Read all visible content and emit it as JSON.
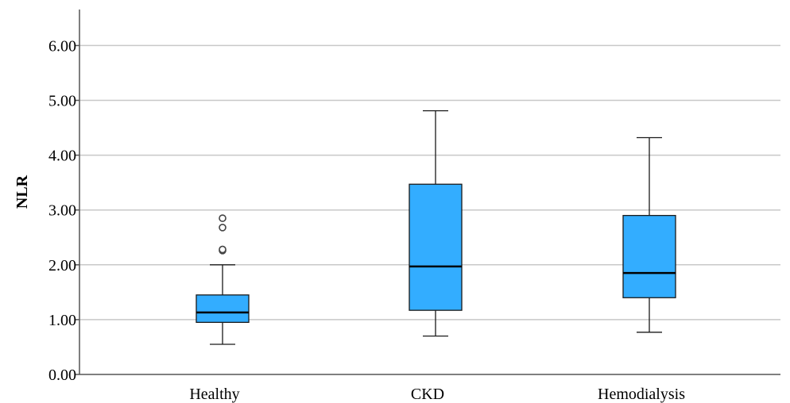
{
  "chart_data": {
    "type": "box",
    "ylabel": "NLR",
    "xlabel": "",
    "ylim": [
      0,
      6.6
    ],
    "yticks": [
      0,
      1,
      2,
      3,
      4,
      5,
      6
    ],
    "ytick_labels": [
      "0.00",
      "1.00",
      "2.00",
      "3.00",
      "4.00",
      "5.00",
      "6.00"
    ],
    "grid": true,
    "categories": [
      "Healthy",
      "CKD",
      "Hemodialysis"
    ],
    "boxes": [
      {
        "category": "Healthy",
        "whisker_low": 0.55,
        "q1": 0.95,
        "median": 1.13,
        "q3": 1.45,
        "whisker_high": 2.0,
        "outliers": [
          2.26,
          2.28,
          2.68,
          2.85
        ]
      },
      {
        "category": "CKD",
        "whisker_low": 0.7,
        "q1": 1.17,
        "median": 1.97,
        "q3": 3.47,
        "whisker_high": 4.81,
        "outliers": []
      },
      {
        "category": "Hemodialysis",
        "whisker_low": 0.77,
        "q1": 1.4,
        "median": 1.85,
        "q3": 2.9,
        "whisker_high": 4.32,
        "outliers": []
      }
    ],
    "colors": {
      "box_fill": "#33adff",
      "box_stroke": "#1a1a1a",
      "grid": "#c8c8c8",
      "axis": "#555555"
    }
  }
}
